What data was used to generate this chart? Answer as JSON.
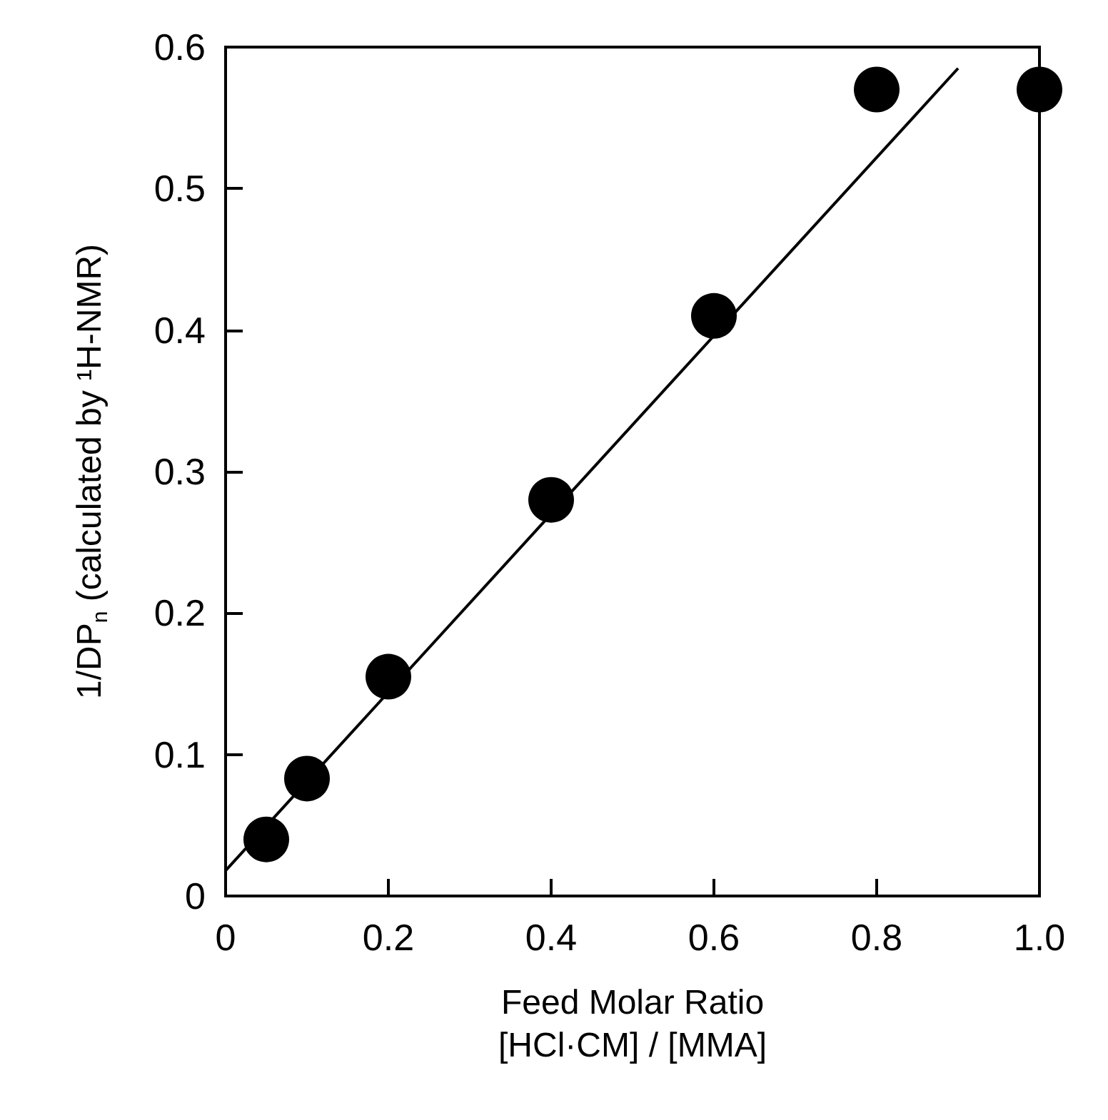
{
  "chart_data": {
    "type": "scatter",
    "xlabel": "Feed Molar Ratio\n[HCl·CM] / [MMA]",
    "ylabel": "1/DP$_{n}$ (calculated by ¹H-NMR)",
    "x": [
      0.05,
      0.1,
      0.2,
      0.4,
      0.6,
      0.8,
      1.0
    ],
    "series": [
      {
        "color": "#000000",
        "values": [
          0.04,
          0.083,
          0.155,
          0.28,
          0.41,
          0.57,
          0.57
        ],
        "marker": "circle"
      },
      {
        "type": "line",
        "color": "#000000",
        "x": [
          0,
          0.9
        ],
        "values": [
          0.018,
          0.585
        ],
        "marker": "none",
        "line_style": "solid"
      }
    ],
    "xlim": [
      0,
      1.0
    ],
    "ylim": [
      0,
      0.6
    ],
    "xticks": [
      0,
      0.2,
      0.4,
      0.6,
      0.8,
      {
        "value": 1.0,
        "label": "1.0"
      }
    ],
    "yticks": [
      0,
      0.1,
      0.2,
      0.3,
      0.4,
      0.5,
      0.6
    ],
    "grid": false
  }
}
